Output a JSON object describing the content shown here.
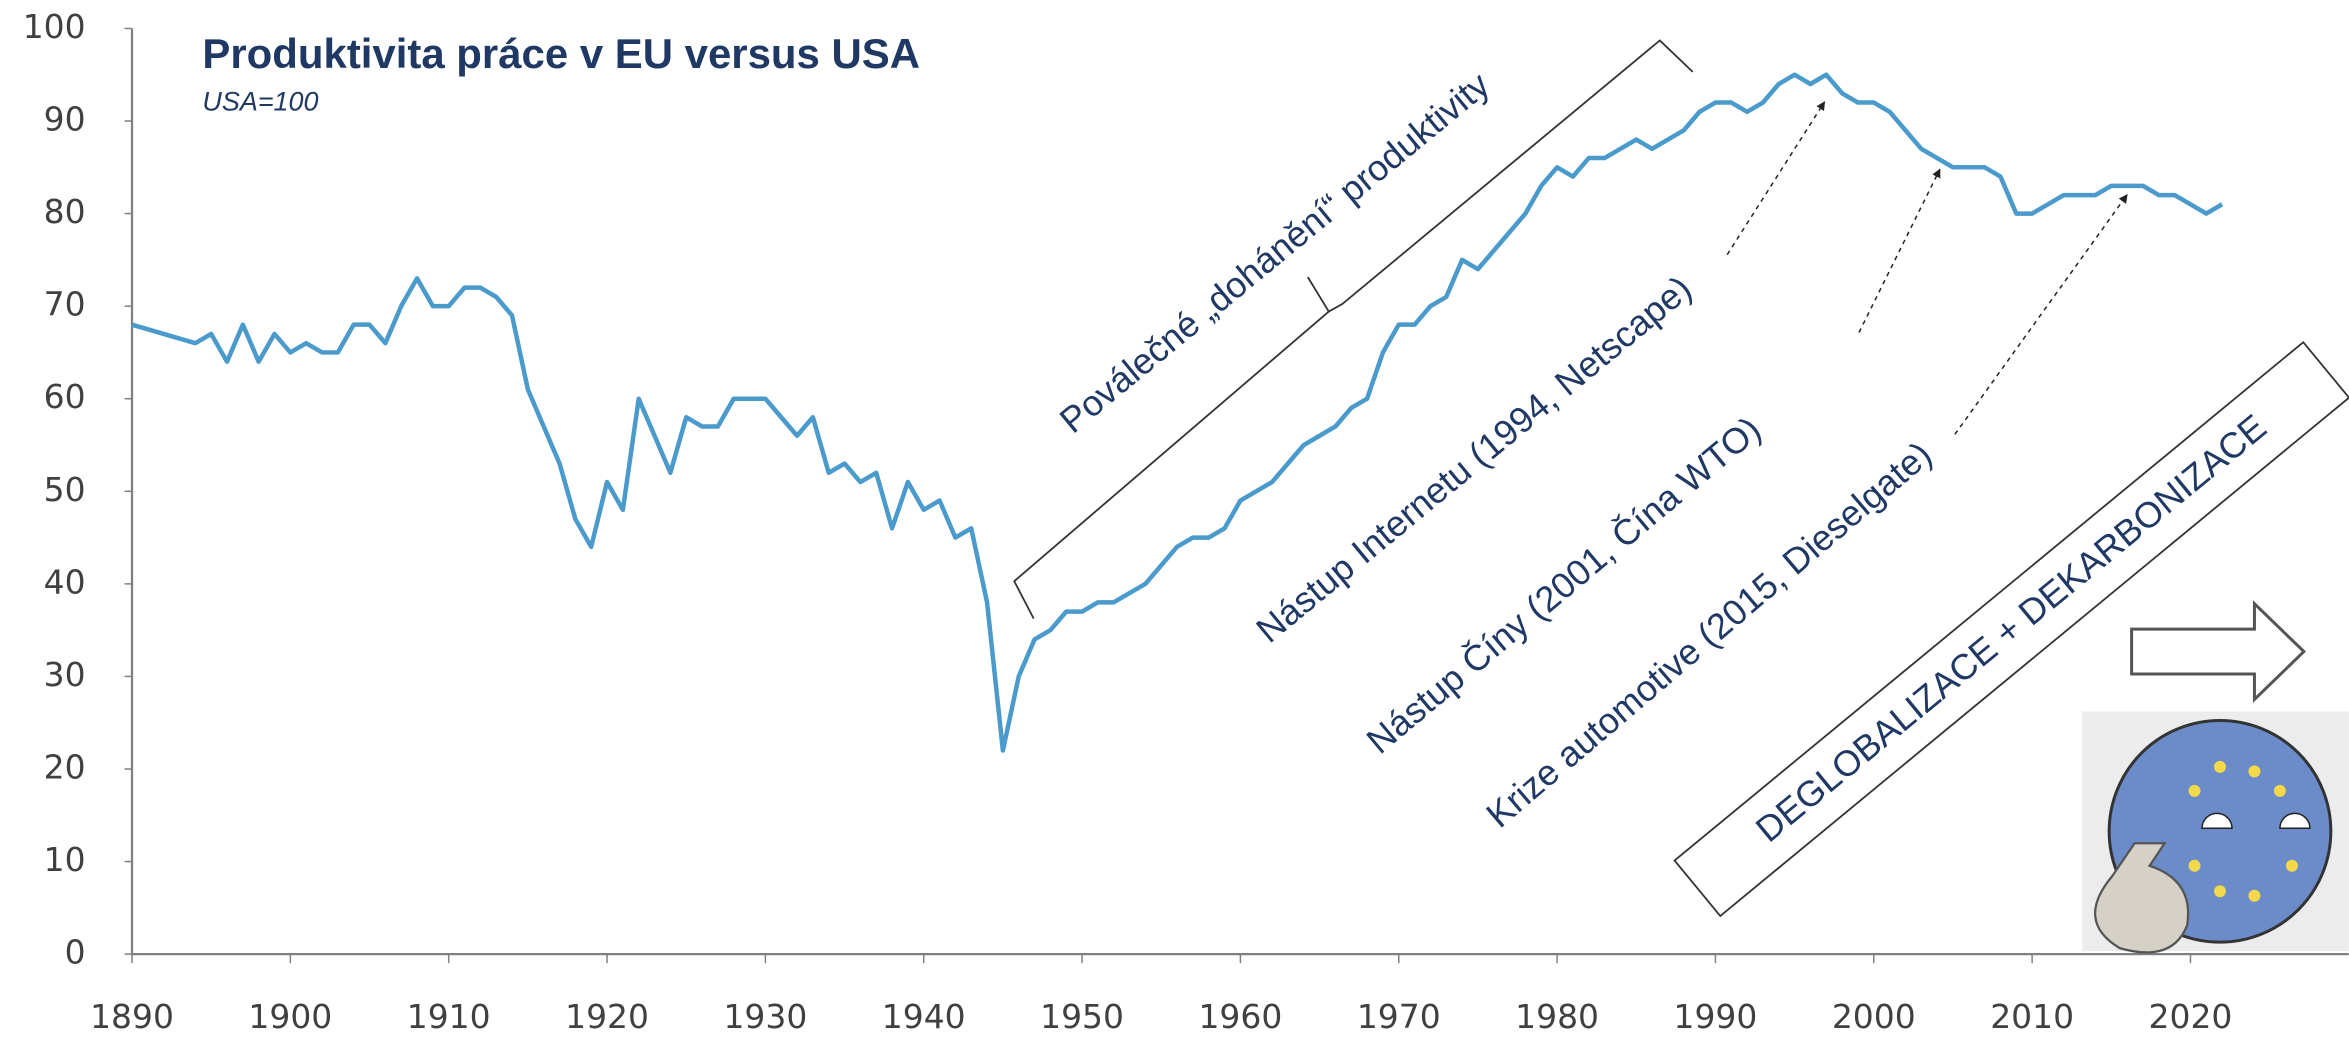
{
  "chart_data": {
    "type": "line",
    "title": "Produktivita práce v EU versus USA",
    "subtitle": "USA=100",
    "annotations": [
      "Poválečné „dohánění“ produktivity",
      "Nástup Internetu (1994, Netscape)",
      "Nástup Číny (2001, Čína WTO)",
      "Krize automotive (2015, Dieselgate)",
      "DEGLOBALIZACE + DEKARBONIZACE"
    ],
    "color": "#4a9acb",
    "xlim": [
      1890,
      2030
    ],
    "ylim": [
      0,
      100
    ],
    "xticks": [
      1890,
      1900,
      1910,
      1920,
      1930,
      1940,
      1950,
      1960,
      1970,
      1980,
      1990,
      2000,
      2010,
      2020
    ],
    "yticks": [
      0,
      10,
      20,
      30,
      40,
      50,
      60,
      70,
      80,
      90,
      100
    ],
    "x": [
      1890,
      1891,
      1892,
      1893,
      1894,
      1895,
      1896,
      1897,
      1898,
      1899,
      1900,
      1901,
      1902,
      1903,
      1904,
      1905,
      1906,
      1907,
      1908,
      1909,
      1910,
      1911,
      1912,
      1913,
      1914,
      1915,
      1916,
      1917,
      1918,
      1919,
      1920,
      1921,
      1922,
      1923,
      1924,
      1925,
      1926,
      1927,
      1928,
      1929,
      1930,
      1931,
      1932,
      1933,
      1934,
      1935,
      1936,
      1937,
      1938,
      1939,
      1940,
      1941,
      1942,
      1943,
      1944,
      1945,
      1946,
      1947,
      1948,
      1949,
      1950,
      1951,
      1952,
      1953,
      1954,
      1955,
      1956,
      1957,
      1958,
      1959,
      1960,
      1961,
      1962,
      1963,
      1964,
      1965,
      1966,
      1967,
      1968,
      1969,
      1970,
      1971,
      1972,
      1973,
      1974,
      1975,
      1976,
      1977,
      1978,
      1979,
      1980,
      1981,
      1982,
      1983,
      1984,
      1985,
      1986,
      1987,
      1988,
      1989,
      1990,
      1991,
      1992,
      1993,
      1994,
      1995,
      1996,
      1997,
      1998,
      1999,
      2000,
      2001,
      2002,
      2003,
      2004,
      2005,
      2006,
      2007,
      2008,
      2009,
      2010,
      2011,
      2012,
      2013,
      2014,
      2015,
      2016,
      2017,
      2018,
      2019,
      2020,
      2021,
      2022
    ],
    "values": [
      68,
      67.5,
      67,
      66.5,
      66,
      67,
      64,
      68,
      64,
      67,
      65,
      66,
      65,
      65,
      68,
      68,
      66,
      70,
      73,
      70,
      70,
      72,
      72,
      71,
      69,
      61,
      57,
      53,
      47,
      44,
      51,
      48,
      60,
      56,
      52,
      58,
      57,
      57,
      60,
      60,
      60,
      58,
      56,
      58,
      52,
      53,
      51,
      52,
      46,
      51,
      48,
      49,
      45,
      46,
      38,
      22,
      30,
      34,
      35,
      37,
      37,
      38,
      38,
      39,
      40,
      42,
      44,
      45,
      45,
      46,
      49,
      50,
      51,
      53,
      55,
      56,
      57,
      59,
      60,
      65,
      68,
      68,
      70,
      71,
      75,
      74,
      76,
      78,
      80,
      83,
      85,
      84,
      86,
      86,
      87,
      88,
      87,
      88,
      89,
      91,
      92,
      92,
      91,
      92,
      94,
      95,
      94,
      95,
      93,
      92,
      92,
      91,
      89,
      87,
      86,
      85,
      85,
      85,
      84,
      80,
      80,
      81,
      82,
      82,
      82,
      83,
      83,
      83,
      82,
      82,
      81,
      80,
      81
    ]
  }
}
